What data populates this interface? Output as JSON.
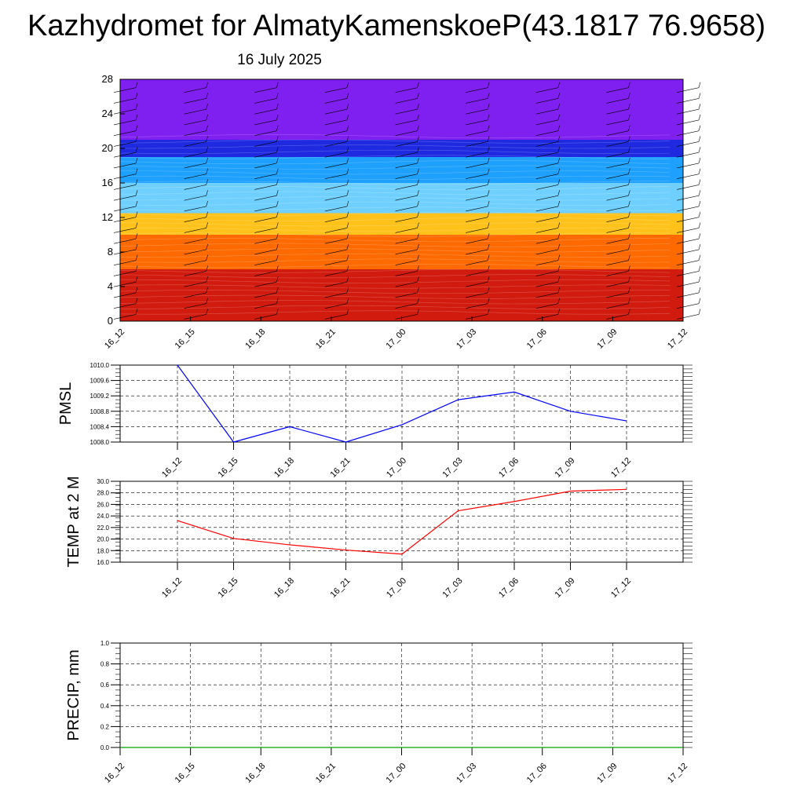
{
  "header": {
    "title": "Kazhydromet for AlmatyKamenskoeP(43.1817 76.9658)",
    "date": "16 July 2025"
  },
  "chart_data": [
    {
      "type": "heatmap",
      "x_ticks": [
        "16_12",
        "16_15",
        "16_18",
        "16_21",
        "17_00",
        "17_03",
        "17_06",
        "17_09",
        "17_12"
      ],
      "y_ticks": [
        "0",
        "4",
        "8",
        "12",
        "16",
        "20",
        "24",
        "28"
      ],
      "ylim": [
        0,
        28
      ],
      "color_bands": [
        {
          "from": 0,
          "to": 6,
          "color": "#d11b0e"
        },
        {
          "from": 6,
          "to": 10,
          "color": "#ff6a00"
        },
        {
          "from": 10,
          "to": 12.5,
          "color": "#ffc21a"
        },
        {
          "from": 12.5,
          "to": 16,
          "color": "#6fd0ff"
        },
        {
          "from": 16,
          "to": 19,
          "color": "#1ea0ff"
        },
        {
          "from": 19,
          "to": 21,
          "color": "#1f2ae0"
        },
        {
          "from": 21,
          "to": 28,
          "color": "#8020f0"
        }
      ],
      "grid": false
    },
    {
      "type": "line",
      "ylabel": "PMSL",
      "x_ticks": [
        "16_12",
        "16_15",
        "16_18",
        "16_21",
        "17_00",
        "17_03",
        "17_06",
        "17_09",
        "17_12"
      ],
      "y_ticks": [
        "1008.0",
        "1008.4",
        "1008.8",
        "1009.2",
        "1009.6",
        "1010.0"
      ],
      "ylim": [
        1008.0,
        1010.0
      ],
      "series": [
        {
          "color": "#0000ff",
          "values": [
            1010.0,
            1008.0,
            1008.4,
            1008.0,
            1008.45,
            1009.1,
            1009.3,
            1008.8,
            1008.55
          ]
        }
      ],
      "grid": true
    },
    {
      "type": "line",
      "ylabel": "TEMP at 2 M",
      "x_ticks": [
        "16_12",
        "16_15",
        "16_18",
        "16_21",
        "17_00",
        "17_03",
        "17_06",
        "17_09",
        "17_12"
      ],
      "y_ticks": [
        "16.0",
        "18.0",
        "20.0",
        "22.0",
        "24.0",
        "26.0",
        "28.0",
        "30.0"
      ],
      "ylim": [
        16.0,
        30.0
      ],
      "series": [
        {
          "color": "#ff0000",
          "values": [
            23.2,
            20.1,
            19.0,
            18.1,
            17.4,
            24.9,
            26.5,
            28.3,
            28.6
          ]
        }
      ],
      "grid": true
    },
    {
      "type": "line",
      "ylabel": "PRECIP, mm",
      "x_ticks": [
        "16_12",
        "16_15",
        "16_18",
        "16_21",
        "17_00",
        "17_03",
        "17_06",
        "17_09",
        "17_12"
      ],
      "y_ticks": [
        "0.0",
        "0.2",
        "0.4",
        "0.6",
        "0.8",
        "1.0"
      ],
      "ylim": [
        0.0,
        1.0
      ],
      "series": [
        {
          "color": "#00a000",
          "values": [
            0,
            0,
            0,
            0,
            0,
            0,
            0,
            0,
            0
          ]
        }
      ],
      "grid": true
    }
  ]
}
